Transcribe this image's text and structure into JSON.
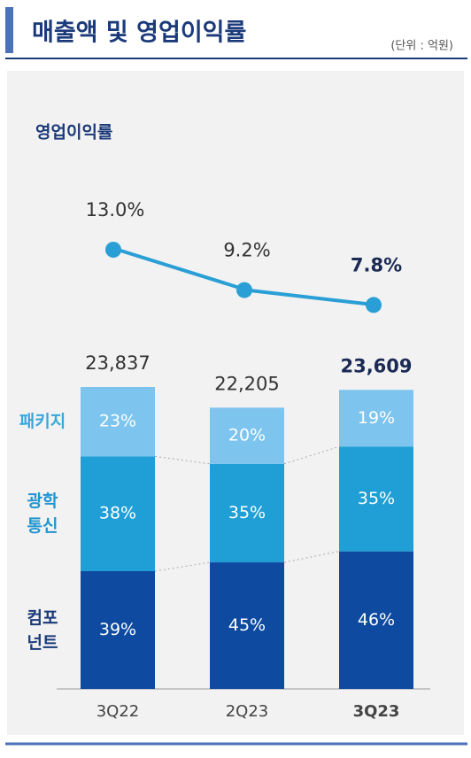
{
  "title": "매출액 및 영업이익률",
  "unit": "(단위 : 억원)",
  "chart_data": {
    "type": "bar",
    "stacked": true,
    "categories": [
      "3Q22",
      "2Q23",
      "3Q23"
    ],
    "series": [
      {
        "name": "컴포\n넌트",
        "color": "#0d4aa0",
        "values": [
          39,
          45,
          46
        ],
        "value_labels": [
          "39%",
          "45%",
          "46%"
        ]
      },
      {
        "name": "광학\n통신",
        "color": "#1f9fd5",
        "values": [
          38,
          35,
          35
        ],
        "value_labels": [
          "38%",
          "35%",
          "35%"
        ]
      },
      {
        "name": "패키지",
        "color": "#7dc4ef",
        "values": [
          23,
          20,
          19
        ],
        "value_labels": [
          "23%",
          "20%",
          "19%"
        ]
      }
    ],
    "totals": {
      "values": [
        23837,
        22205,
        23609
      ],
      "value_labels": [
        "23,837",
        "22,205",
        "23,609"
      ]
    },
    "line": {
      "title": "영업이익률",
      "color": "#2a9fd6",
      "values": [
        13.0,
        9.2,
        7.8
      ],
      "value_labels": [
        "13.0%",
        "9.2%",
        "7.8%"
      ]
    }
  }
}
